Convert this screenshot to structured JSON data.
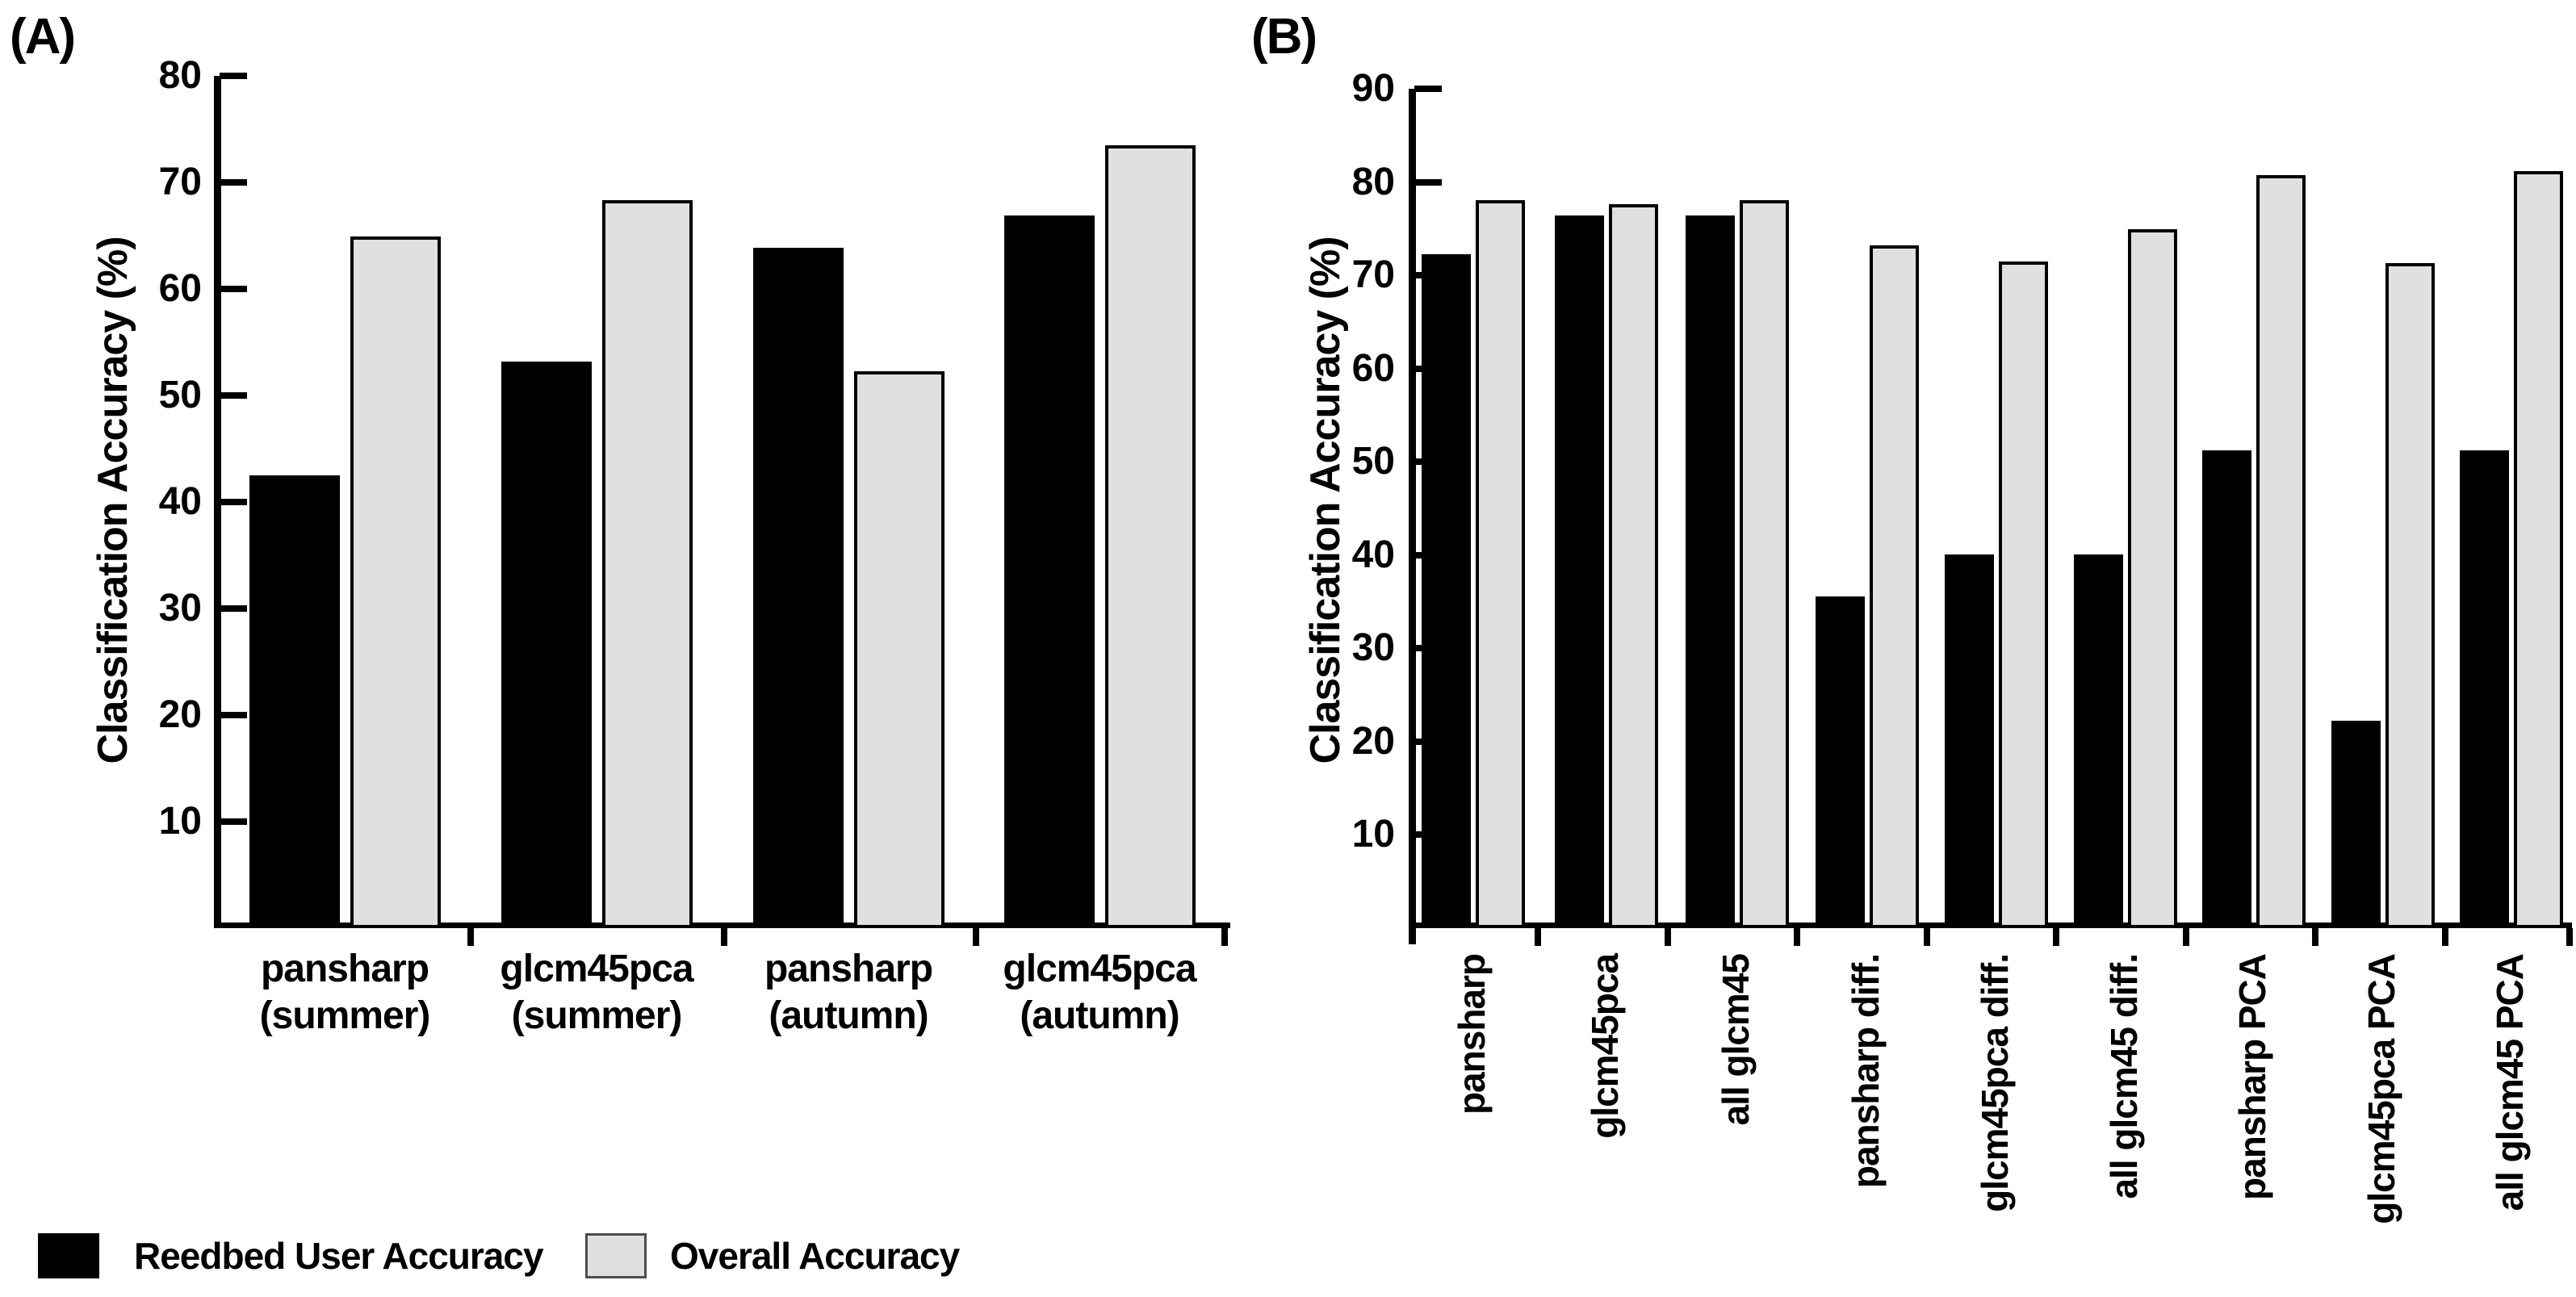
{
  "figure": {
    "background": "#ffffff",
    "ink_color": "#000000"
  },
  "legend": {
    "items": [
      {
        "id": "reedbed",
        "label": "Reedbed User Accuracy",
        "color": "#000000",
        "border": "#000000"
      },
      {
        "id": "overall",
        "label": "Overall Accuracy",
        "color": "#e0e0e0",
        "border": "#4d4d4d"
      }
    ]
  },
  "chart_data": [
    {
      "panel": "(A)",
      "type": "bar",
      "title": "",
      "xlabel": "",
      "ylabel": "Classification Accuracy (%)",
      "ylim": [
        0,
        80
      ],
      "yticks": [
        80,
        70,
        60,
        50,
        40,
        30,
        20,
        10
      ],
      "grid": false,
      "legend_position": "bottom-left",
      "xtick_rotation": 0,
      "categories": [
        "pansharp (summer)",
        "glcm45pca (summer)",
        "pansharp (autumn)",
        "glcm45pca (autumn)"
      ],
      "category_lines": [
        [
          "pansharp",
          "(summer)"
        ],
        [
          "glcm45pca",
          "(summer)"
        ],
        [
          "pansharp",
          "(autumn)"
        ],
        [
          "glcm45pca",
          "(autumn)"
        ]
      ],
      "series": [
        {
          "name": "Reedbed User Accuracy",
          "color": "#000000",
          "values": [
            42.5,
            53.2,
            63.9,
            66.9
          ]
        },
        {
          "name": "Overall Accuracy",
          "color": "#e0e0e0",
          "values": [
            64.9,
            68.3,
            52.3,
            73.5
          ]
        }
      ]
    },
    {
      "panel": "(B)",
      "type": "bar",
      "title": "",
      "xlabel": "",
      "ylabel": "Classification Accuracy (%)",
      "ylim": [
        0,
        90
      ],
      "yticks": [
        90,
        80,
        70,
        60,
        50,
        40,
        30,
        20,
        10
      ],
      "grid": false,
      "legend_position": "none",
      "xtick_rotation": 90,
      "categories": [
        "pansharp",
        "glcm45pca",
        "all glcm45",
        "pansharp diff.",
        "glcm45pca diff.",
        "all glcm45 diff.",
        "pansharp PCA",
        "glcm45pca PCA",
        "all glcm45 PCA"
      ],
      "series": [
        {
          "name": "Reedbed User Accuracy",
          "color": "#000000",
          "values": [
            72.3,
            76.4,
            76.4,
            35.6,
            40.1,
            40.1,
            51.2,
            22.2,
            51.2
          ]
        },
        {
          "name": "Overall Accuracy",
          "color": "#e0e0e0",
          "values": [
            78.1,
            77.6,
            78.1,
            73.2,
            71.5,
            74.9,
            80.7,
            71.3,
            81.2
          ]
        }
      ]
    }
  ]
}
